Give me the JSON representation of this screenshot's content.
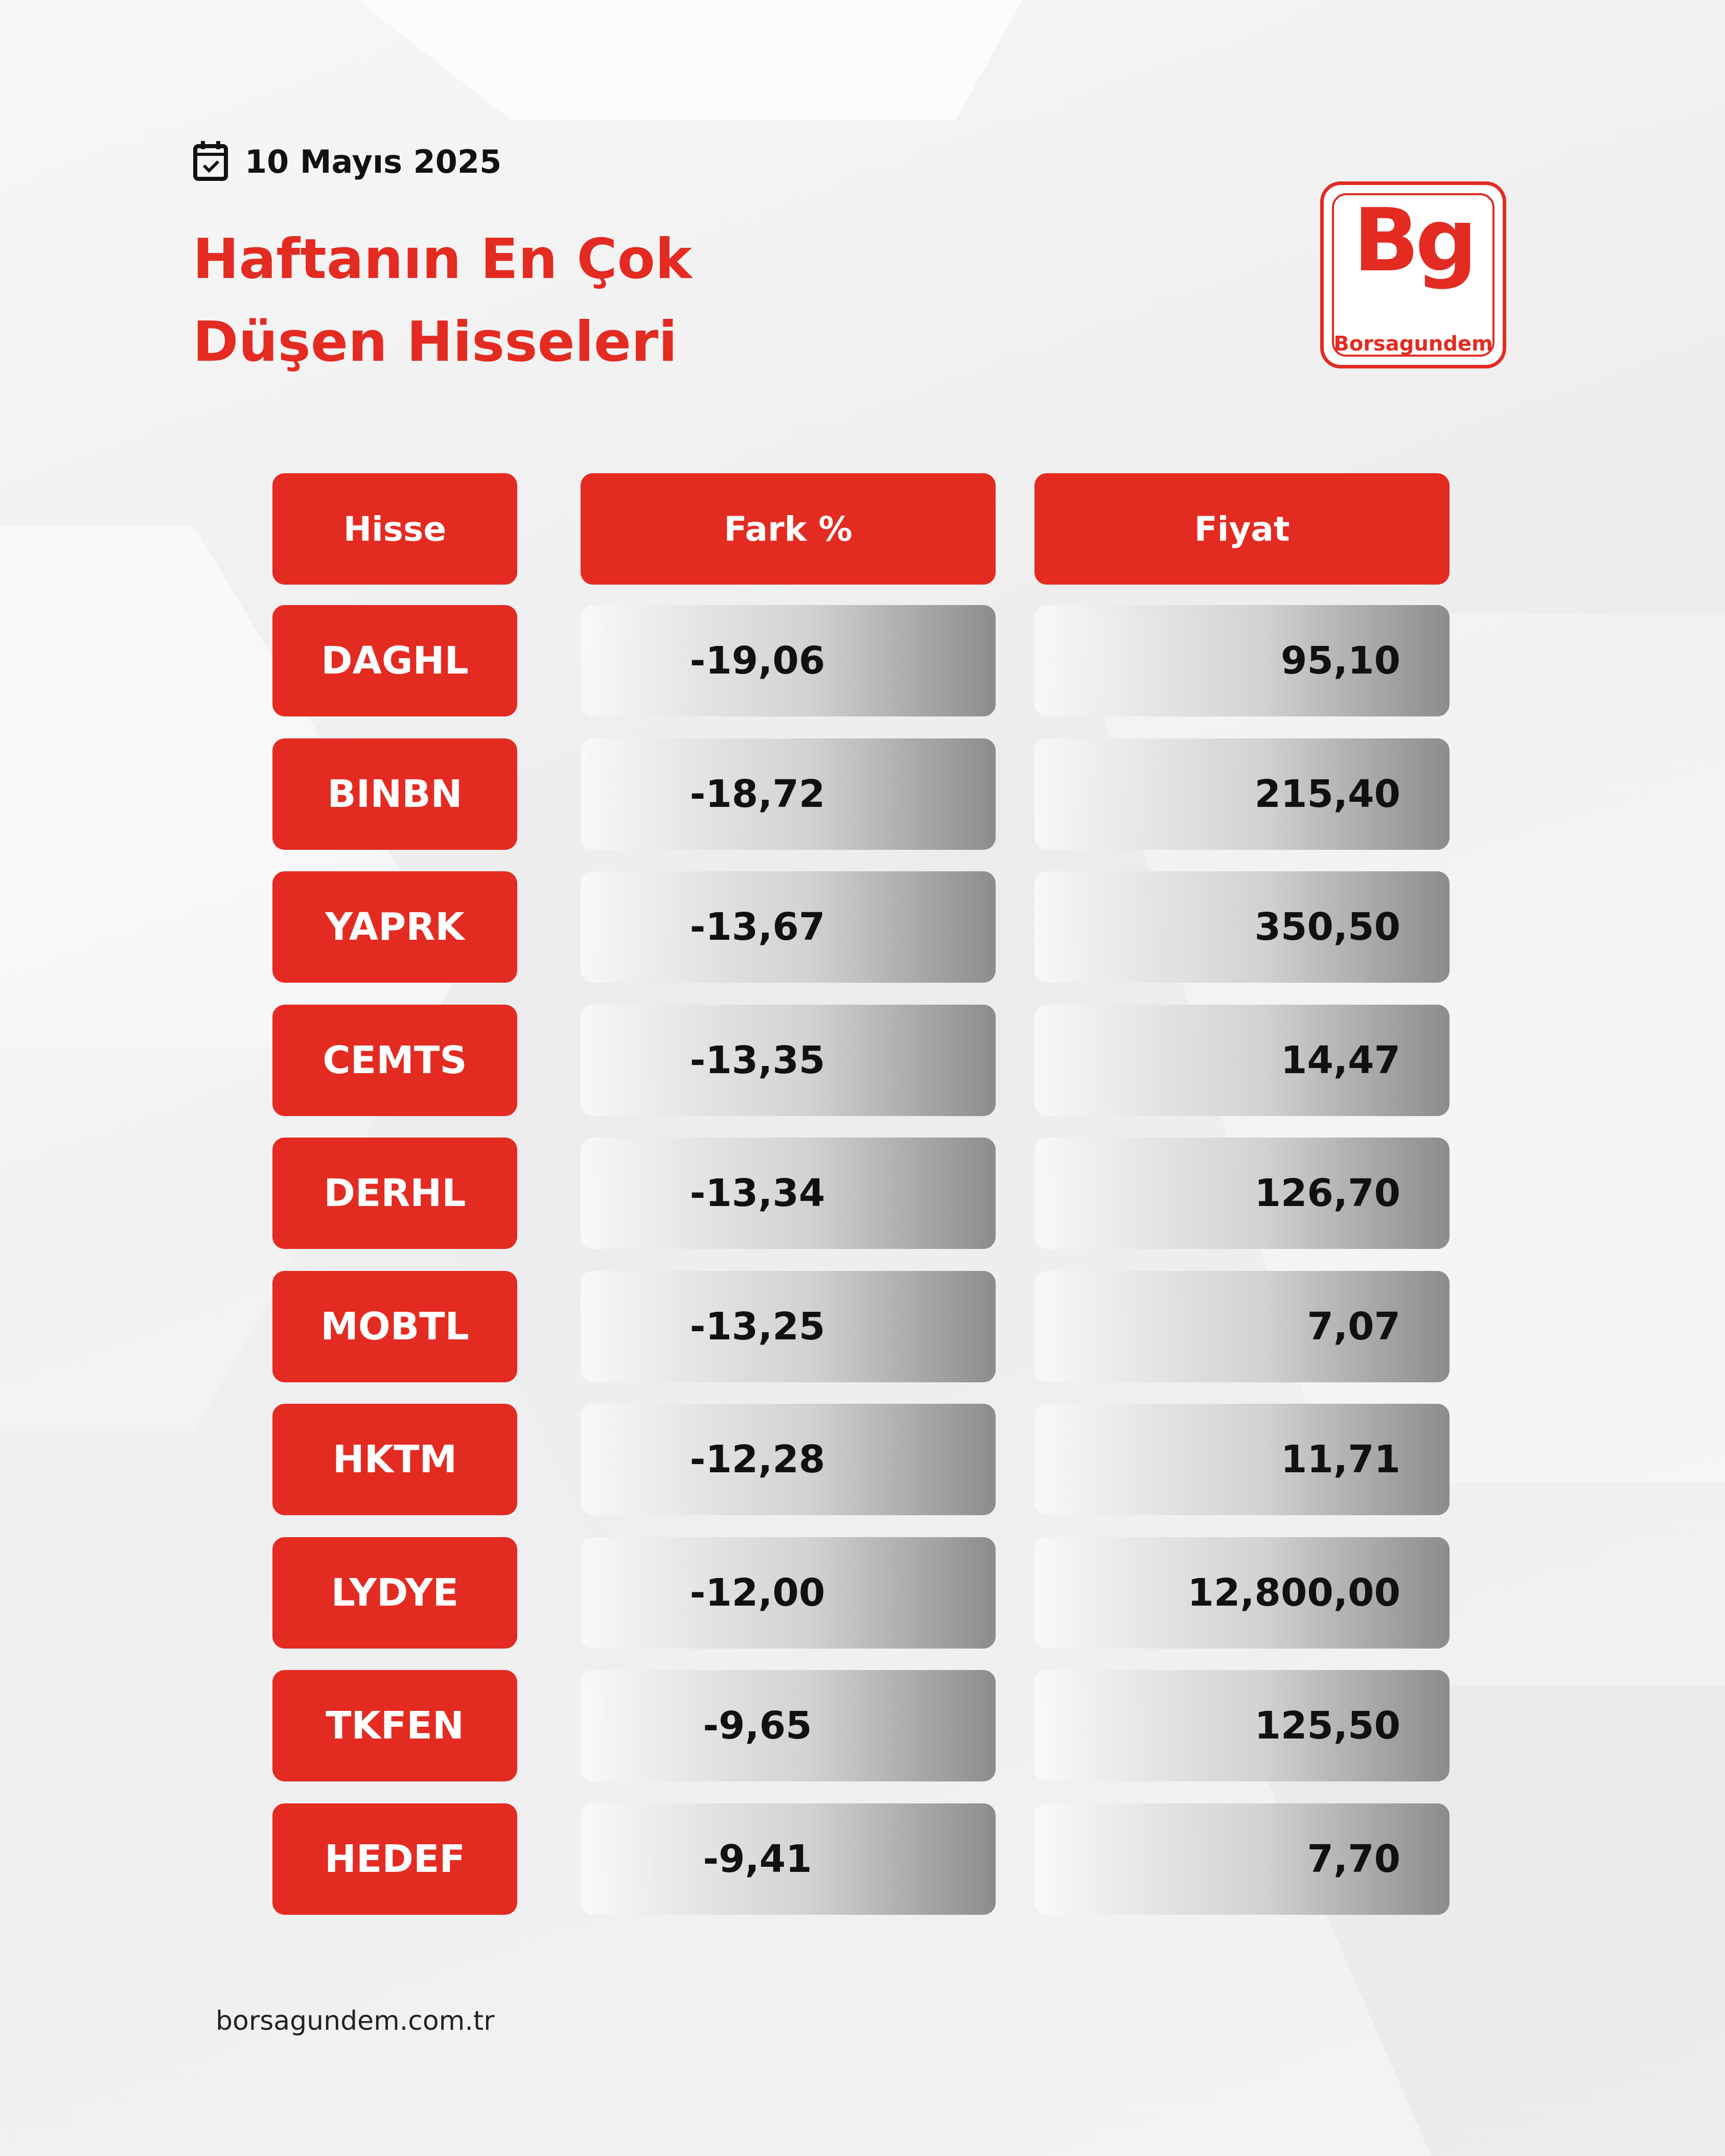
{
  "header": {
    "date": "10 Mayıs 2025",
    "title_lines": [
      "Haftanın En Çok",
      "Düşen Hisseleri"
    ]
  },
  "logo": {
    "mark": "Bg",
    "name": "Borsagundem"
  },
  "table": {
    "columns": [
      "Hisse",
      "Fark %",
      "Fiyat"
    ],
    "rows": [
      [
        "DAGHL",
        "-19,06",
        "95,10"
      ],
      [
        "BINBN",
        "-18,72",
        "215,40"
      ],
      [
        "YAPRK",
        "-13,67",
        "350,50"
      ],
      [
        "CEMTS",
        "-13,35",
        "14,47"
      ],
      [
        "DERHL",
        "-13,34",
        "126,70"
      ],
      [
        "MOBTL",
        "-13,25",
        "7,07"
      ],
      [
        "HKTM",
        "-12,28",
        "11,71"
      ],
      [
        "LYDYE",
        "-12,00",
        "12,800,00"
      ],
      [
        "TKFEN",
        "-9,65",
        "125,50"
      ],
      [
        "HEDEF",
        "-9,41",
        "7,70"
      ]
    ]
  },
  "footer": {
    "url": "borsagundem.com.tr"
  }
}
